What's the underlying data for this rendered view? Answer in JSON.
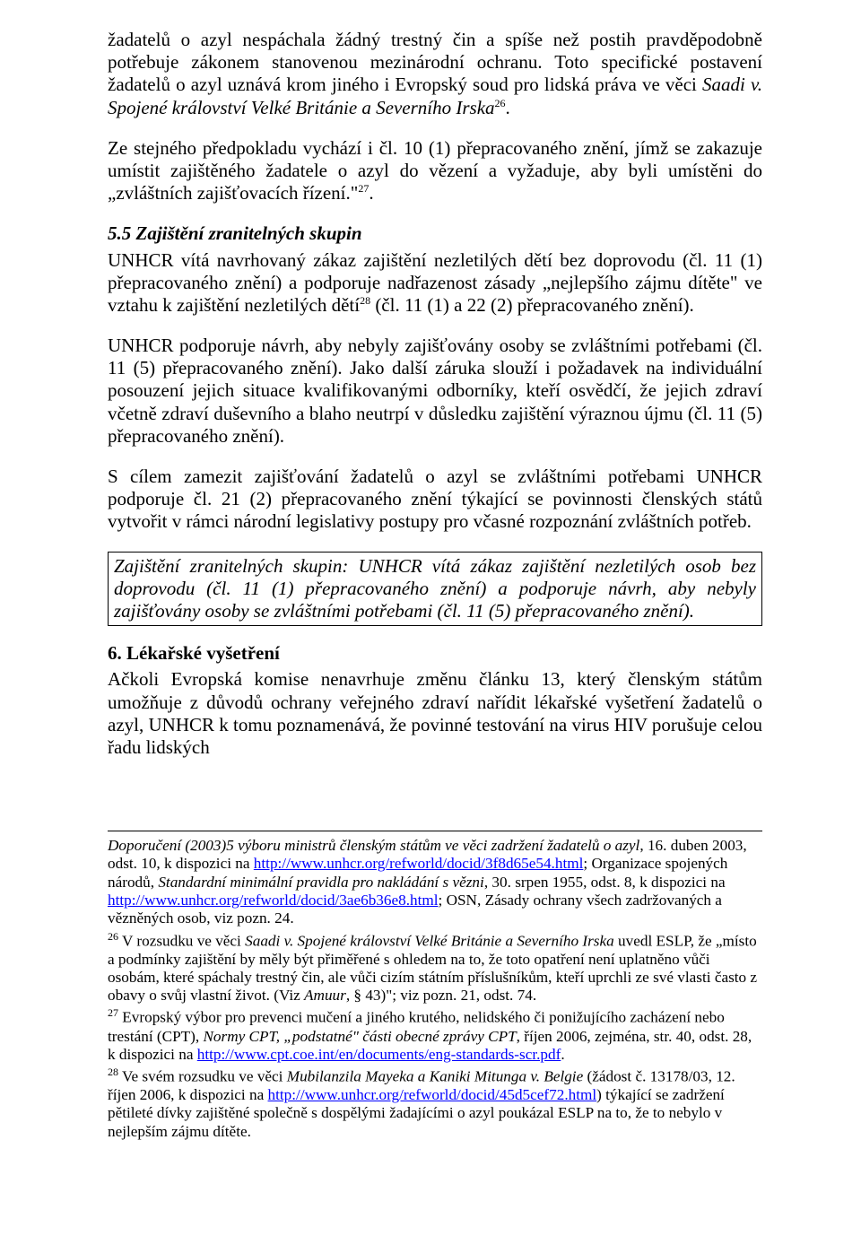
{
  "p1": "žadatelů o azyl nespáchala žádný trestný čin a spíše než postih pravděpodobně potřebuje zákonem stanovenou mezinárodní ochranu. Toto specifické postavení žadatelů o azyl uznává krom jiného i Evropský soud pro lidská práva ve věci ",
  "p1_case": "Saadi v. Spojené království Velké Británie a Severního Irska",
  "p1_sup": "26",
  "p1_after": ".",
  "p2": "Ze stejného předpokladu vychází i čl. 10 (1) přepracovaného znění, jímž se zakazuje umístit zajištěného žadatele o azyl do vězení a vyžaduje, aby byli umístěni do „zvláštních zajišťovacích řízení.\"",
  "p2_sup": "27",
  "p2_after": ".",
  "sec55_title": "5.5 Zajištění zranitelných skupin",
  "p3a": "UNHCR vítá navrhovaný zákaz zajištění nezletilých dětí bez doprovodu (čl. 11 (1) přepracovaného znění) a podporuje nadřazenost zásady „nejlepšího zájmu dítěte\" ve vztahu k zajištění nezletilých dětí",
  "p3_sup": "28",
  "p3b": " (čl. 11 (1) a 22 (2) přepracovaného znění).",
  "p4": "UNHCR podporuje návrh, aby nebyly zajišťovány osoby se zvláštními potřebami (čl. 11 (5) přepracovaného znění). Jako další záruka slouží i požadavek na individuální posouzení jejich situace kvalifikovanými odborníky, kteří osvědčí, že jejich zdraví včetně zdraví duševního a blaho neutrpí v důsledku zajištění výraznou újmu (čl. 11 (5) přepracovaného znění).",
  "p5": "S cílem zamezit zajišťování žadatelů o azyl se zvláštními potřebami UNHCR podporuje čl. 21 (2) přepracovaného znění týkající se povinnosti členských států vytvořit v rámci národní legislativy postupy pro včasné rozpoznání zvláštních potřeb.",
  "box_text": "Zajištění zranitelných skupin: UNHCR vítá zákaz zajištění nezletilých osob bez doprovodu (čl. 11 (1) přepracovaného znění) a podporuje návrh, aby nebyly zajišťovány osoby se zvláštními potřebami (čl. 11 (5)  přepracovaného znění).",
  "sec6_title": "6. Lékařské vyšetření",
  "p6": "Ačkoli Evropská komise nenavrhuje změnu článku 13, který členským státům umožňuje z důvodů ochrany veřejného zdraví nařídit lékařské vyšetření žadatelů o azyl, UNHCR k tomu poznamenává, že povinné testování na virus HIV porušuje celou řadu lidských",
  "fn_pre_a": "Doporučení (2003)5 výboru ministrů členským státům ve věci zadržení žadatelů o azyl",
  "fn_pre_b": ", 16. duben 2003, odst. 10, k dispozici na ",
  "fn_pre_link1": "http://www.unhcr.org/refworld/docid/3f8d65e54.html",
  "fn_pre_c": "; Organizace spojených národů, ",
  "fn_pre_d": "Standardní minimální pravidla pro nakládání s vězni",
  "fn_pre_e": ", 30. srpen 1955, odst. 8, k dispozici na ",
  "fn_pre_link2": "http://www.unhcr.org/refworld/docid/3ae6b36e8.html",
  "fn_pre_f": "; OSN, Zásady ochrany všech zadržovaných a vězněných osob, viz pozn. 24.",
  "fn26_num": "26",
  "fn26_a": " V rozsudku ve věci ",
  "fn26_case": "Saadi v. Spojené království Velké Británie a Severního Irska",
  "fn26_b": " uvedl ESLP, že „místo a podmínky zajištění by měly být přiměřené s ohledem na to, že toto opatření není uplatněno vůči osobám, které spáchaly trestný čin, ale vůči cizím státním příslušníkům, kteří uprchli ze své vlasti často z obavy o svůj vlastní život. (Viz ",
  "fn26_c": "Amuur",
  "fn26_d": ", § 43)\"; viz pozn. 21, odst. 74.",
  "fn27_num": "27",
  "fn27_a": " Evropský výbor pro prevenci mučení a jiného krutého, nelidského či ponižujícího zacházení nebo trestání (CPT), ",
  "fn27_b": "Normy CPT, „podstatné\" části obecné zprávy CPT",
  "fn27_c": ", říjen 2006, zejména, str. 40, odst. 28, k dispozici na ",
  "fn27_link": "http://www.cpt.coe.int/en/documents/eng-standards-scr.pdf",
  "fn27_d": ".",
  "fn28_num": "28",
  "fn28_a": " Ve svém rozsudku ve věci ",
  "fn28_case": "Mubilanzila Mayeka a Kaniki Mitunga v. Belgie",
  "fn28_b": " (žádost č. 13178/03, 12. říjen 2006, k dispozici na ",
  "fn28_link": "http://www.unhcr.org/refworld/docid/45d5cef72.html",
  "fn28_c": ") týkající se zadržení pětileté dívky zajištěné společně s dospělými žadajícími o azyl poukázal ESLP na to, že to nebylo v nejlepším zájmu dítěte."
}
